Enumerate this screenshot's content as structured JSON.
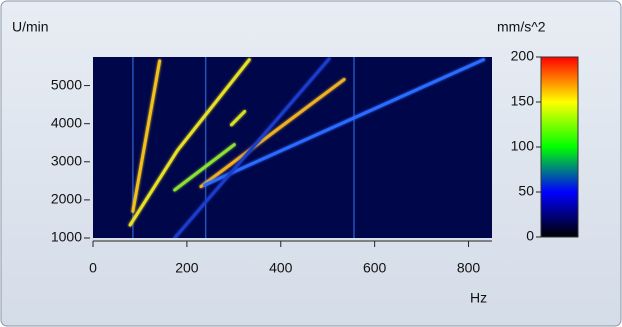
{
  "chart_data": {
    "type": "spectrogram",
    "ylabel": "U/min",
    "xlabel": "Hz",
    "xlim": [
      0,
      850
    ],
    "xticks": [
      0,
      200,
      400,
      600,
      800
    ],
    "ylim": [
      1000,
      5750
    ],
    "yticks": [
      1000,
      2000,
      3000,
      4000,
      5000
    ],
    "background": "#00064a",
    "series": [
      {
        "x": [
          85,
          142
        ],
        "y": [
          1700,
          5650
        ],
        "color": "#f2c21e"
      },
      {
        "x": [
          79,
          180,
          333
        ],
        "y": [
          1340,
          3300,
          5680
        ],
        "color": "#e8e020"
      },
      {
        "x": [
          174,
          301
        ],
        "y": [
          2260,
          3450
        ],
        "color": "#8ee030"
      },
      {
        "x": [
          230,
          535
        ],
        "y": [
          2350,
          5160
        ],
        "color": "#f0b020"
      },
      {
        "x": [
          295,
          323
        ],
        "y": [
          3970,
          4320
        ],
        "color": "#d8e020"
      },
      {
        "x": [
          238,
          832
        ],
        "y": [
          2390,
          5680
        ],
        "color": "#2c6cff"
      },
      {
        "x": [
          174,
          503
        ],
        "y": [
          1000,
          5700
        ],
        "color": "#1a3ccc"
      }
    ],
    "vlines": [
      85,
      240,
      556
    ],
    "vline_color": "#2f66d8",
    "colorbar": {
      "label": "mm/s^2",
      "clim": [
        0,
        200
      ],
      "ticks": [
        0,
        50,
        100,
        150,
        200
      ],
      "colors": [
        "#000000",
        "#0000ff",
        "#00ff00",
        "#ffff00",
        "#ff0000"
      ]
    }
  }
}
